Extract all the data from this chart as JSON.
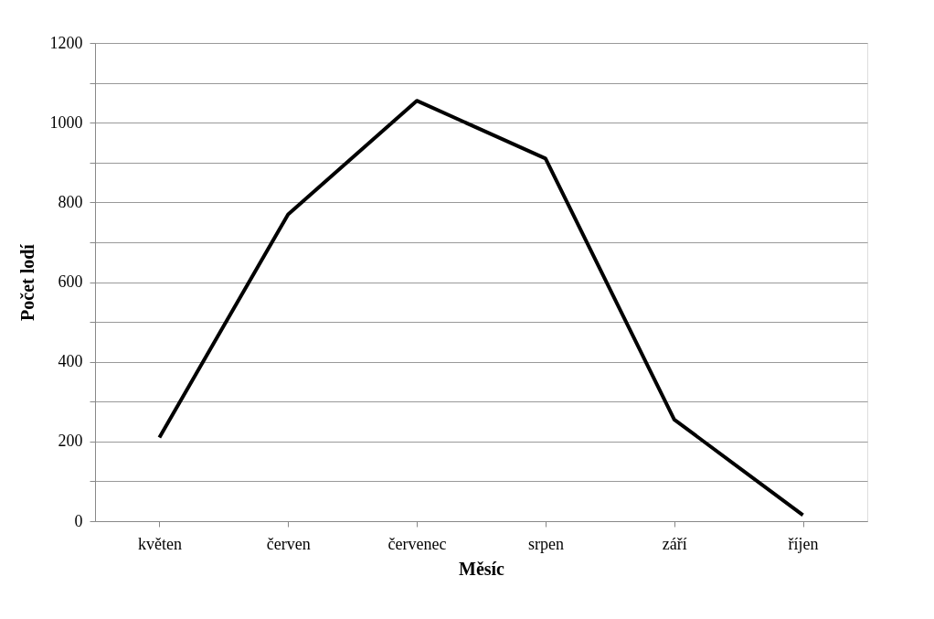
{
  "chart_data": {
    "type": "line",
    "xlabel": "Měsíc",
    "ylabel": "Počet lodí",
    "categories": [
      "květen",
      "červen",
      "červenec",
      "srpen",
      "září",
      "říjen"
    ],
    "series": [
      {
        "color": "#000000",
        "values": [
          210,
          770,
          1055,
          910,
          255,
          15
        ]
      }
    ],
    "ylim": [
      0,
      1200
    ],
    "yticks": [
      0,
      {
        "value": 100,
        "label": null
      },
      200,
      {
        "value": 300,
        "label": null
      },
      400,
      {
        "value": 500,
        "label": null
      },
      600,
      {
        "value": 700,
        "label": null
      },
      800,
      {
        "value": 900,
        "label": null
      },
      1000,
      {
        "value": 1100,
        "label": null
      },
      1200
    ],
    "grid": "y",
    "marker": "none",
    "line_style": "solid"
  }
}
